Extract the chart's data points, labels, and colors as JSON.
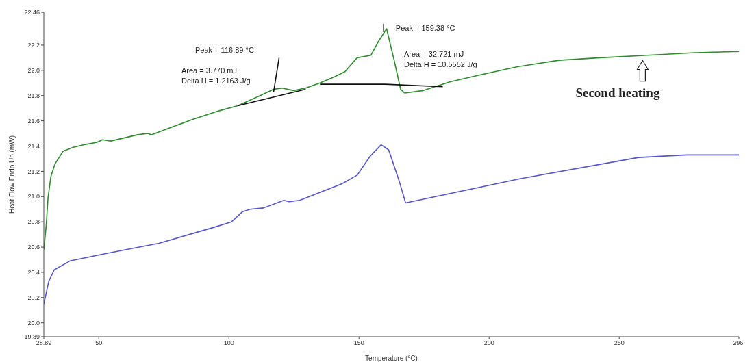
{
  "chart_data": {
    "type": "line",
    "xlabel": "Temperature (°C)",
    "ylabel": "Heat Flow Endo Up (mW)",
    "xlim": [
      28.89,
      296
    ],
    "xticks": [
      28.89,
      50,
      100,
      150,
      200,
      250,
      {
        "value": 296,
        "label": "296."
      }
    ],
    "ylim": [
      19.89,
      22.46
    ],
    "yticks": [
      19.89,
      {
        "value": 20,
        "label": "20.0"
      },
      20.2,
      20.4,
      20.6,
      20.8,
      {
        "value": 21,
        "label": "21.0"
      },
      21.2,
      21.4,
      21.6,
      21.8,
      {
        "value": 22,
        "label": "22.0"
      },
      22.2,
      22.46
    ],
    "marker": "none",
    "line_style": "solid",
    "series": [
      {
        "color": "#2e8b2e",
        "x": [
          28.89,
          29.8,
          30.5,
          31.6,
          33.2,
          36.3,
          40.2,
          44.1,
          49.3,
          51.4,
          54.6,
          65.0,
          68.9,
          70.2,
          75.5,
          85.9,
          96.3,
          103.4,
          112.0,
          117.2,
          120.4,
          124.9,
          129.5,
          135.0,
          140.7,
          144.6,
          149.3,
          154.6,
          157.2,
          160.6,
          163.4,
          166.0,
          167.6,
          174.7,
          185.1,
          195.6,
          211.2,
          226.9,
          242.6,
          260.8,
          279.1,
          296
        ],
        "values": [
          20.58,
          20.77,
          20.99,
          21.16,
          21.26,
          21.36,
          21.39,
          21.41,
          21.43,
          21.45,
          21.44,
          21.49,
          21.5,
          21.49,
          21.53,
          21.61,
          21.68,
          21.72,
          21.8,
          21.85,
          21.86,
          21.84,
          21.86,
          21.9,
          21.95,
          21.99,
          22.1,
          22.12,
          22.22,
          22.33,
          22.09,
          21.85,
          21.82,
          21.84,
          21.91,
          21.96,
          22.03,
          22.08,
          22.1,
          22.12,
          22.14,
          22.15
        ]
      },
      {
        "color": "#5555cc",
        "x": [
          28.89,
          30.8,
          32.9,
          38.9,
          53.0,
          73.1,
          93.2,
          101.0,
          105.2,
          108.1,
          113.3,
          121.1,
          123.2,
          127.2,
          143.3,
          149.3,
          154.3,
          158.5,
          161.4,
          165.5,
          167.9,
          211.5,
          257.4,
          276.0,
          296
        ],
        "values": [
          20.15,
          20.33,
          20.42,
          20.49,
          20.55,
          20.63,
          20.75,
          20.8,
          20.88,
          20.9,
          20.91,
          20.97,
          20.96,
          20.97,
          21.1,
          21.17,
          21.32,
          21.41,
          21.37,
          21.12,
          20.95,
          21.14,
          21.31,
          21.33,
          21.33
        ]
      },
      {
        "color": "#111111",
        "x": [
          103.4,
          129.5
        ],
        "values": [
          21.72,
          21.85
        ]
      },
      {
        "color": "#111111",
        "x": [
          117.2,
          119.3
        ],
        "values": [
          21.83,
          22.1
        ]
      },
      {
        "color": "#111111",
        "x": [
          135.0,
          160.0,
          182.2
        ],
        "values": [
          21.89,
          21.89,
          21.87
        ]
      }
    ],
    "annotations": [
      "Peak = 116.89 °C",
      "Area = 3.770 mJ",
      "Delta H = 1.2163 J/g",
      {
        "text": "Peak = 159.38 °C",
        "x": 159.38,
        "y": 22.33
      },
      "Area = 32.721 mJ",
      "Delta H = 10.5552 J/g",
      {
        "text": "Second heating",
        "x": 259,
        "y": 22.11
      }
    ]
  }
}
